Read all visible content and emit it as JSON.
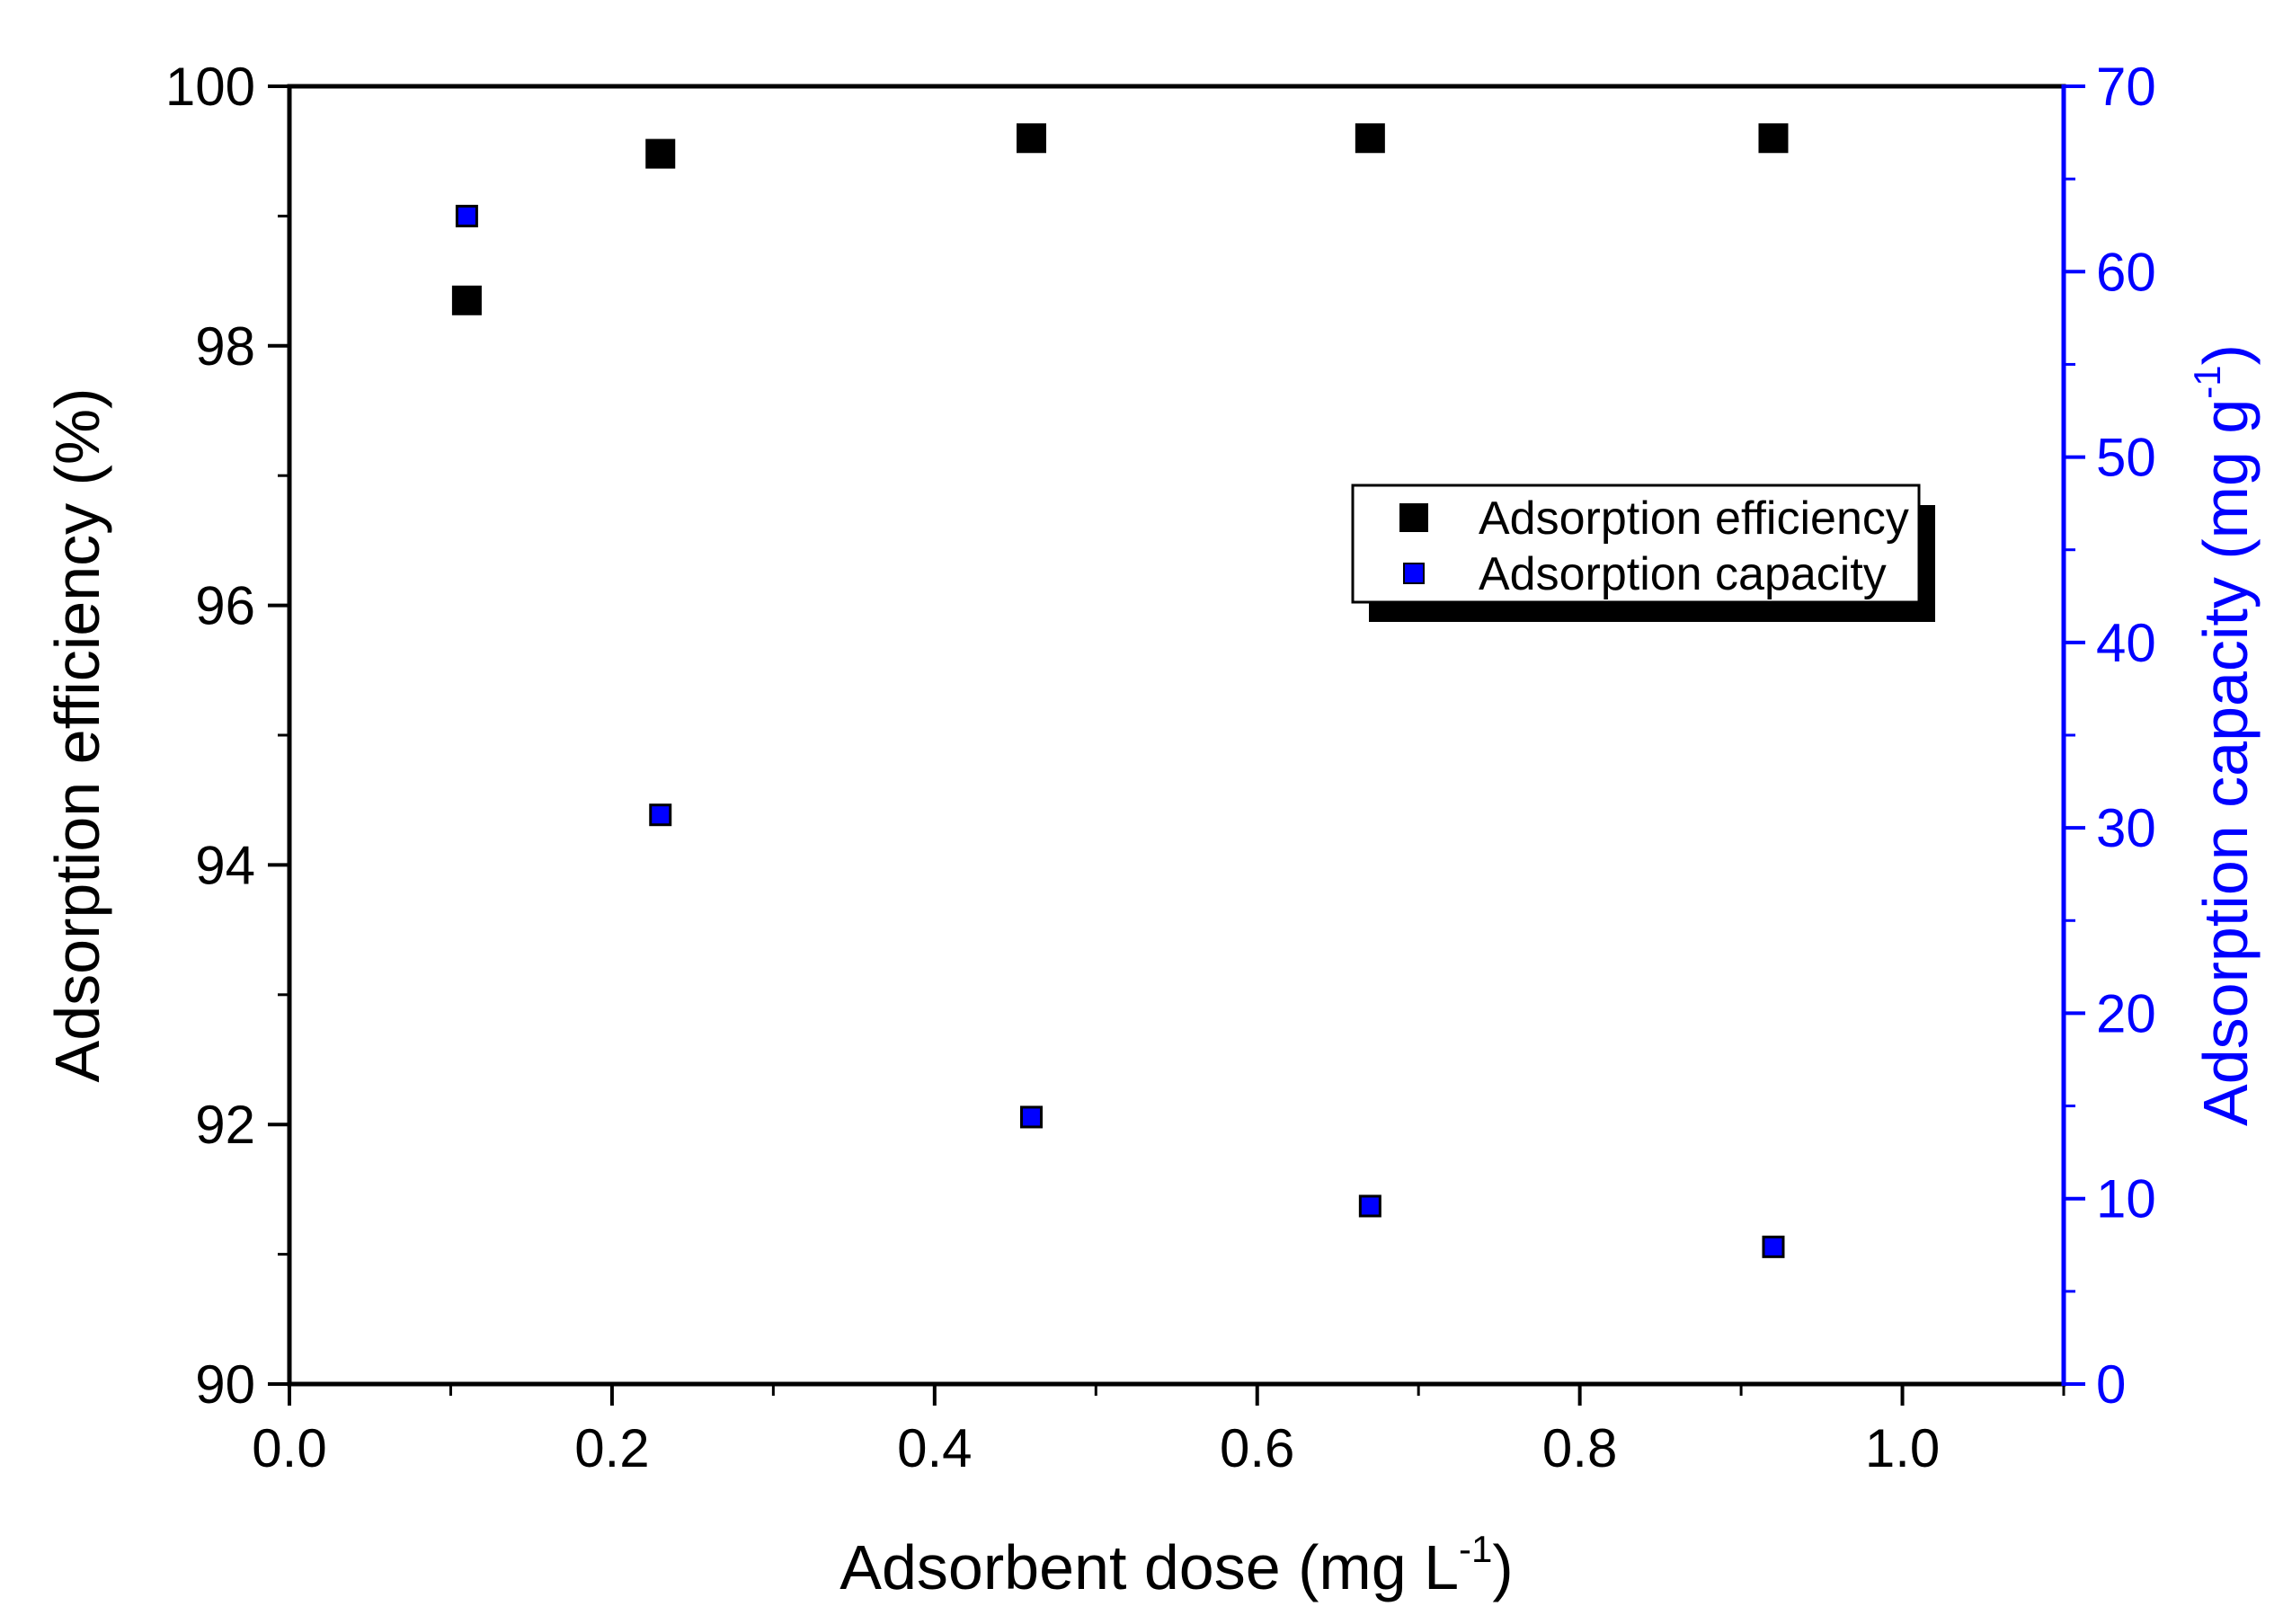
{
  "chart_data": {
    "type": "scatter",
    "title": "",
    "xlabel": {
      "main": "Adsorbent dose (mg L",
      "sup": "-1",
      "end": ")"
    },
    "ylabel_left": "Adsorption efficiency (%)",
    "ylabel_right": {
      "main": "Adsorption capacity (mg g",
      "sup": "-1",
      "end": ")"
    },
    "xlim": [
      0.0,
      1.1
    ],
    "ylim_left": [
      90,
      100
    ],
    "ylim_right": [
      0,
      70
    ],
    "x_ticks": [
      "0.0",
      "0.2",
      "0.4",
      "0.6",
      "0.8",
      "1.0"
    ],
    "y_left_ticks": [
      "90",
      "92",
      "94",
      "96",
      "98",
      "100"
    ],
    "y_right_ticks": [
      "0",
      "10",
      "20",
      "30",
      "40",
      "50",
      "60",
      "70"
    ],
    "grid": false,
    "legend_position": "upper-right",
    "series": [
      {
        "name": "Adsorption efficiency",
        "axis": "left",
        "color": "#000000",
        "x": [
          0.11,
          0.23,
          0.46,
          0.67,
          0.92
        ],
        "y": [
          98.35,
          99.48,
          99.6,
          99.6,
          99.6
        ]
      },
      {
        "name": "Adsorption capacity",
        "axis": "right",
        "color": "#0000ff",
        "x": [
          0.11,
          0.23,
          0.46,
          0.67,
          0.92
        ],
        "y": [
          63.0,
          30.7,
          14.4,
          9.6,
          7.4
        ]
      }
    ],
    "colors": {
      "left_axis": "#000000",
      "right_axis": "#0000ff"
    }
  }
}
